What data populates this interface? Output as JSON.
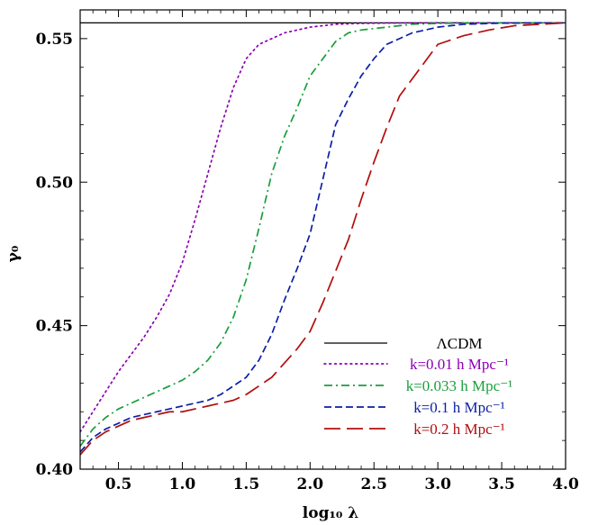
{
  "chart_data": {
    "type": "line",
    "xlabel": "log₁₀ λ",
    "ylabel": "γ₀",
    "xlim": [
      0.2,
      4.0
    ],
    "ylim": [
      0.4,
      0.56
    ],
    "x_ticks": [
      "0.5",
      "1.0",
      "1.5",
      "2.0",
      "2.5",
      "3.0",
      "3.5",
      "4.0"
    ],
    "y_ticks": [
      "0.40",
      "0.45",
      "0.50",
      "0.55"
    ],
    "legend_position": "lower-right",
    "series": [
      {
        "name": "ΛCDM",
        "color": "#000000",
        "dash": "solid",
        "x": [
          0.2,
          4.0
        ],
        "y": [
          0.5555,
          0.5555
        ]
      },
      {
        "name": "k=0.01 h Mpc⁻¹",
        "color": "#8B00B3",
        "dash": "dotted",
        "x": [
          0.2,
          0.3,
          0.4,
          0.5,
          0.6,
          0.7,
          0.8,
          0.9,
          1.0,
          1.1,
          1.2,
          1.3,
          1.4,
          1.5,
          1.6,
          1.7,
          1.8,
          1.9,
          2.0,
          2.2,
          2.4,
          2.6,
          3.0,
          3.5,
          4.0
        ],
        "y": [
          0.413,
          0.42,
          0.427,
          0.434,
          0.44,
          0.446,
          0.453,
          0.461,
          0.472,
          0.487,
          0.503,
          0.519,
          0.533,
          0.543,
          0.548,
          0.55,
          0.552,
          0.553,
          0.554,
          0.555,
          0.5553,
          0.5554,
          0.5555,
          0.5555,
          0.5555
        ]
      },
      {
        "name": "k=0.033 h Mpc⁻¹",
        "color": "#1A9E3C",
        "dash": "dashdot",
        "x": [
          0.2,
          0.3,
          0.4,
          0.5,
          0.6,
          0.7,
          0.8,
          0.9,
          1.0,
          1.1,
          1.2,
          1.3,
          1.4,
          1.5,
          1.6,
          1.7,
          1.8,
          1.9,
          2.0,
          2.1,
          2.2,
          2.3,
          2.4,
          2.6,
          2.8,
          3.0,
          3.5,
          4.0
        ],
        "y": [
          0.408,
          0.414,
          0.418,
          0.421,
          0.423,
          0.425,
          0.427,
          0.429,
          0.431,
          0.434,
          0.438,
          0.444,
          0.453,
          0.466,
          0.484,
          0.503,
          0.516,
          0.526,
          0.537,
          0.543,
          0.549,
          0.552,
          0.553,
          0.554,
          0.555,
          0.5553,
          0.5555,
          0.5555
        ]
      },
      {
        "name": "k=0.1 h Mpc⁻¹",
        "color": "#0B1FA6",
        "dash": "dashed",
        "x": [
          0.2,
          0.3,
          0.4,
          0.5,
          0.6,
          0.7,
          0.8,
          0.9,
          1.0,
          1.1,
          1.2,
          1.3,
          1.4,
          1.5,
          1.6,
          1.7,
          1.8,
          1.9,
          2.0,
          2.1,
          2.2,
          2.3,
          2.4,
          2.5,
          2.6,
          2.7,
          2.8,
          3.0,
          3.2,
          3.5,
          4.0
        ],
        "y": [
          0.406,
          0.411,
          0.414,
          0.416,
          0.418,
          0.419,
          0.42,
          0.421,
          0.422,
          0.423,
          0.424,
          0.426,
          0.429,
          0.432,
          0.438,
          0.447,
          0.459,
          0.47,
          0.482,
          0.501,
          0.52,
          0.529,
          0.537,
          0.543,
          0.548,
          0.55,
          0.552,
          0.554,
          0.555,
          0.5554,
          0.5555
        ]
      },
      {
        "name": "k=0.2 h Mpc⁻¹",
        "color": "#B20E0E",
        "dash": "longdash",
        "x": [
          0.2,
          0.3,
          0.4,
          0.5,
          0.6,
          0.7,
          0.8,
          0.9,
          1.0,
          1.1,
          1.2,
          1.3,
          1.4,
          1.5,
          1.6,
          1.7,
          1.8,
          1.9,
          2.0,
          2.1,
          2.2,
          2.3,
          2.4,
          2.5,
          2.6,
          2.7,
          2.8,
          2.9,
          3.0,
          3.2,
          3.4,
          3.6,
          4.0
        ],
        "y": [
          0.405,
          0.41,
          0.413,
          0.415,
          0.417,
          0.418,
          0.419,
          0.42,
          0.42,
          0.421,
          0.422,
          0.423,
          0.424,
          0.426,
          0.429,
          0.432,
          0.437,
          0.442,
          0.448,
          0.458,
          0.469,
          0.48,
          0.494,
          0.507,
          0.519,
          0.53,
          0.536,
          0.542,
          0.548,
          0.551,
          0.553,
          0.5545,
          0.5555
        ]
      }
    ]
  }
}
